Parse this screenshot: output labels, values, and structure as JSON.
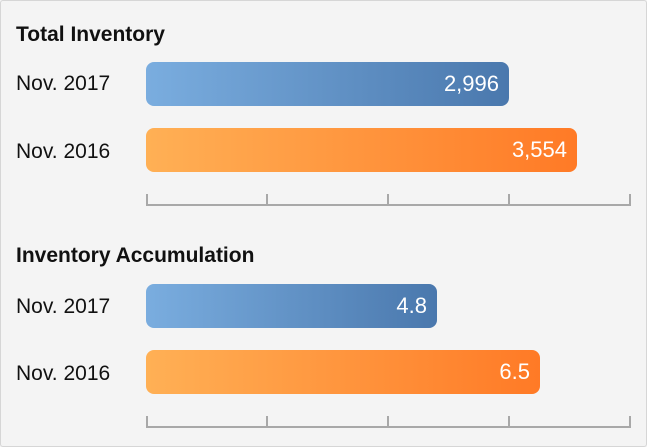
{
  "chart_data": [
    {
      "type": "bar",
      "orientation": "horizontal",
      "title": "Total Inventory",
      "categories": [
        "Nov. 2017",
        "Nov. 2016"
      ],
      "values": [
        2996,
        3554
      ],
      "value_labels": [
        "2,996",
        "3,554"
      ],
      "xlim": [
        0,
        4000
      ],
      "colors": [
        "#4a78ad",
        "#ff7a26"
      ],
      "grid": false
    },
    {
      "type": "bar",
      "orientation": "horizontal",
      "title": "Inventory Accumulation",
      "categories": [
        "Nov. 2017",
        "Nov. 2016"
      ],
      "values": [
        4.8,
        6.5
      ],
      "value_labels": [
        "4.8",
        "6.5"
      ],
      "xlim": [
        0,
        8
      ],
      "colors": [
        "#4a78ad",
        "#ff7a26"
      ],
      "grid": false
    }
  ]
}
